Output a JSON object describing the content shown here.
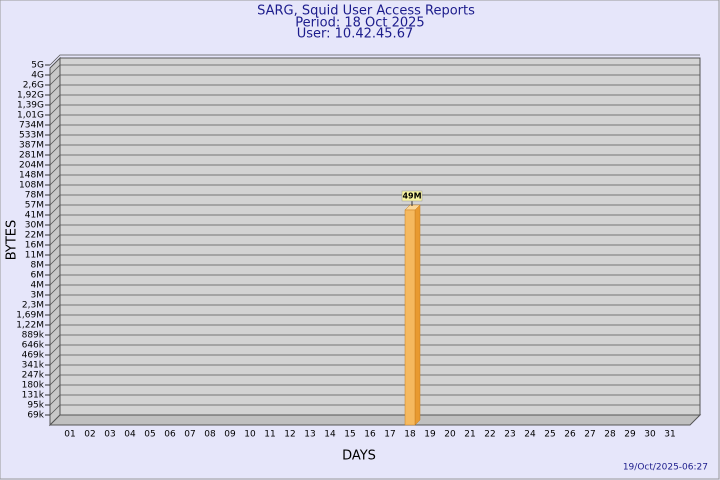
{
  "chart_data": {
    "type": "bar",
    "title": "SARG, Squid User Access Reports",
    "subtitle": "Period: 18 Oct 2025",
    "user": "User: 10.42.45.67",
    "xlabel": "DAYS",
    "ylabel": "BYTES",
    "footer": "19/Oct/2025-06:27",
    "categories": [
      "01",
      "02",
      "03",
      "04",
      "05",
      "06",
      "07",
      "08",
      "09",
      "10",
      "11",
      "12",
      "13",
      "14",
      "15",
      "16",
      "17",
      "18",
      "19",
      "20",
      "21",
      "22",
      "23",
      "24",
      "25",
      "26",
      "27",
      "28",
      "29",
      "30",
      "31"
    ],
    "values": [
      null,
      null,
      null,
      null,
      null,
      null,
      null,
      null,
      null,
      null,
      null,
      null,
      null,
      null,
      null,
      null,
      null,
      49000000,
      null,
      null,
      null,
      null,
      null,
      null,
      null,
      null,
      null,
      null,
      null,
      null,
      null
    ],
    "value_labels": [
      null,
      null,
      null,
      null,
      null,
      null,
      null,
      null,
      null,
      null,
      null,
      null,
      null,
      null,
      null,
      null,
      null,
      "49M",
      null,
      null,
      null,
      null,
      null,
      null,
      null,
      null,
      null,
      null,
      null,
      null,
      null
    ],
    "color": "#f5b95f",
    "ylim": [
      0,
      5000000000
    ],
    "yticks": [
      {
        "value": 69000,
        "label": "69k"
      },
      {
        "value": 95000,
        "label": "95k"
      },
      {
        "value": 131000,
        "label": "131k"
      },
      {
        "value": 180000,
        "label": "180k"
      },
      {
        "value": 247000,
        "label": "247k"
      },
      {
        "value": 341000,
        "label": "341k"
      },
      {
        "value": 469000,
        "label": "469k"
      },
      {
        "value": 646000,
        "label": "646k"
      },
      {
        "value": 889000,
        "label": "889k"
      },
      {
        "value": 1220000,
        "label": "1,22M"
      },
      {
        "value": 1690000,
        "label": "1,69M"
      },
      {
        "value": 2300000,
        "label": "2,3M"
      },
      {
        "value": 3000000,
        "label": "3M"
      },
      {
        "value": 4000000,
        "label": "4M"
      },
      {
        "value": 6000000,
        "label": "6M"
      },
      {
        "value": 8000000,
        "label": "8M"
      },
      {
        "value": 11000000,
        "label": "11M"
      },
      {
        "value": 16000000,
        "label": "16M"
      },
      {
        "value": 22000000,
        "label": "22M"
      },
      {
        "value": 30000000,
        "label": "30M"
      },
      {
        "value": 41000000,
        "label": "41M"
      },
      {
        "value": 57000000,
        "label": "57M"
      },
      {
        "value": 78000000,
        "label": "78M"
      },
      {
        "value": 108000000,
        "label": "108M"
      },
      {
        "value": 148000000,
        "label": "148M"
      },
      {
        "value": 204000000,
        "label": "204M"
      },
      {
        "value": 281000000,
        "label": "281M"
      },
      {
        "value": 387000000,
        "label": "387M"
      },
      {
        "value": 533000000,
        "label": "533M"
      },
      {
        "value": 734000000,
        "label": "734M"
      },
      {
        "value": 1010000000,
        "label": "1,01G"
      },
      {
        "value": 1390000000,
        "label": "1,39G"
      },
      {
        "value": 1920000000,
        "label": "1,92G"
      },
      {
        "value": 2600000000,
        "label": "2,6G"
      },
      {
        "value": 4000000000,
        "label": "4G"
      },
      {
        "value": 5000000000,
        "label": "5G"
      }
    ],
    "grid": true
  }
}
